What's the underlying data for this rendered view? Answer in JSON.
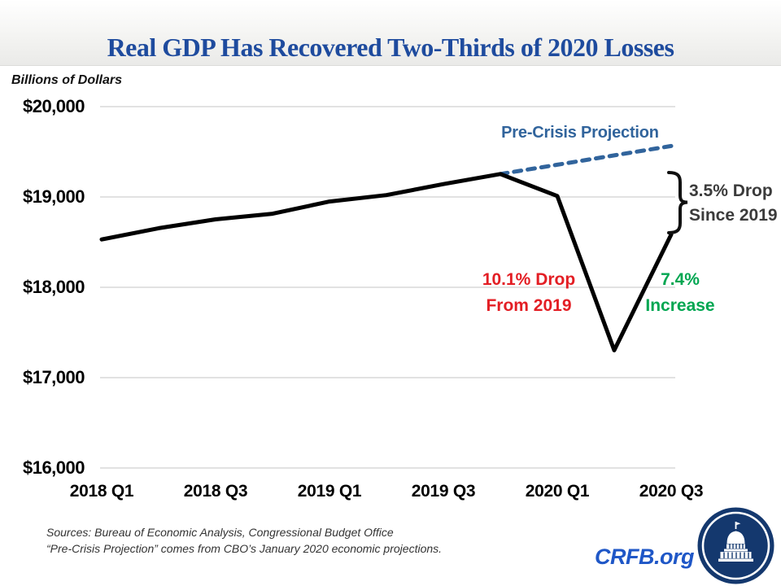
{
  "slide": {
    "title": "Real GDP Has Recovered Two-Thirds of 2020 Losses",
    "footer": {
      "source_line1": "Sources: Bureau of Economic Analysis, Congressional Budget Office",
      "source_line2": "“Pre-Crisis Projection” comes from CBO’s January 2020 economic projections.",
      "brand": "CRFB.org",
      "logo": "us-capitol-badge"
    },
    "colors": {
      "title_blue": "#1E4B9E",
      "projection_blue": "#31649C",
      "drop_red": "#E31E24",
      "increase_green": "#00A651",
      "bracket_gray": "#3B3B3B",
      "gridline_gray": "#D9D9D9",
      "gdp_line_black": "#000000",
      "brand_blue": "#1F57C7",
      "logo_navy": "#14386E"
    }
  },
  "chart_data": {
    "type": "line",
    "title": "Real GDP Has Recovered Two-Thirds of 2020 Losses",
    "xlabel": "",
    "ylabel": "Billions of Dollars",
    "ylim": [
      16000,
      20000
    ],
    "grid": true,
    "legend_position": "inline-label",
    "y_ticks": [
      20000,
      19000,
      18000,
      17000,
      16000
    ],
    "y_tick_labels": [
      "$20,000",
      "$19,000",
      "$18,000",
      "$17,000",
      "$16,000"
    ],
    "x_tick_labels": [
      "2018 Q1",
      "2018 Q3",
      "2019 Q1",
      "2019 Q3",
      "2020 Q1",
      "2020 Q3"
    ],
    "categories": [
      "2018 Q1",
      "2018 Q2",
      "2018 Q3",
      "2018 Q4",
      "2019 Q1",
      "2019 Q2",
      "2019 Q3",
      "2019 Q4",
      "2020 Q1",
      "2020 Q2",
      "2020 Q3"
    ],
    "series": [
      {
        "name": "Real GDP",
        "style": "solid",
        "color": "#000000",
        "start_index": 0,
        "values": [
          18530,
          18654,
          18752,
          18814,
          18950,
          19021,
          19142,
          19254,
          19011,
          17303,
          18584
        ]
      },
      {
        "name": "Pre-Crisis Projection",
        "style": "dashed",
        "color": "#31649C",
        "start_index": 7,
        "values": [
          19254,
          19357,
          19460,
          19564
        ]
      }
    ],
    "annotations": [
      {
        "id": "pre-crisis-label",
        "color": "#31649C",
        "lines": [
          "Pre-Crisis Projection",
          ""
        ]
      },
      {
        "id": "drop-from-2019",
        "color": "#E31E24",
        "lines": [
          "10.1% Drop",
          "From 2019"
        ]
      },
      {
        "id": "increase-2020",
        "color": "#00A651",
        "lines": [
          "7.4%",
          "Increase"
        ]
      },
      {
        "id": "drop-since-2019",
        "color": "#3B3B3B",
        "lines": [
          "3.5% Drop",
          "Since 2019"
        ]
      }
    ]
  }
}
